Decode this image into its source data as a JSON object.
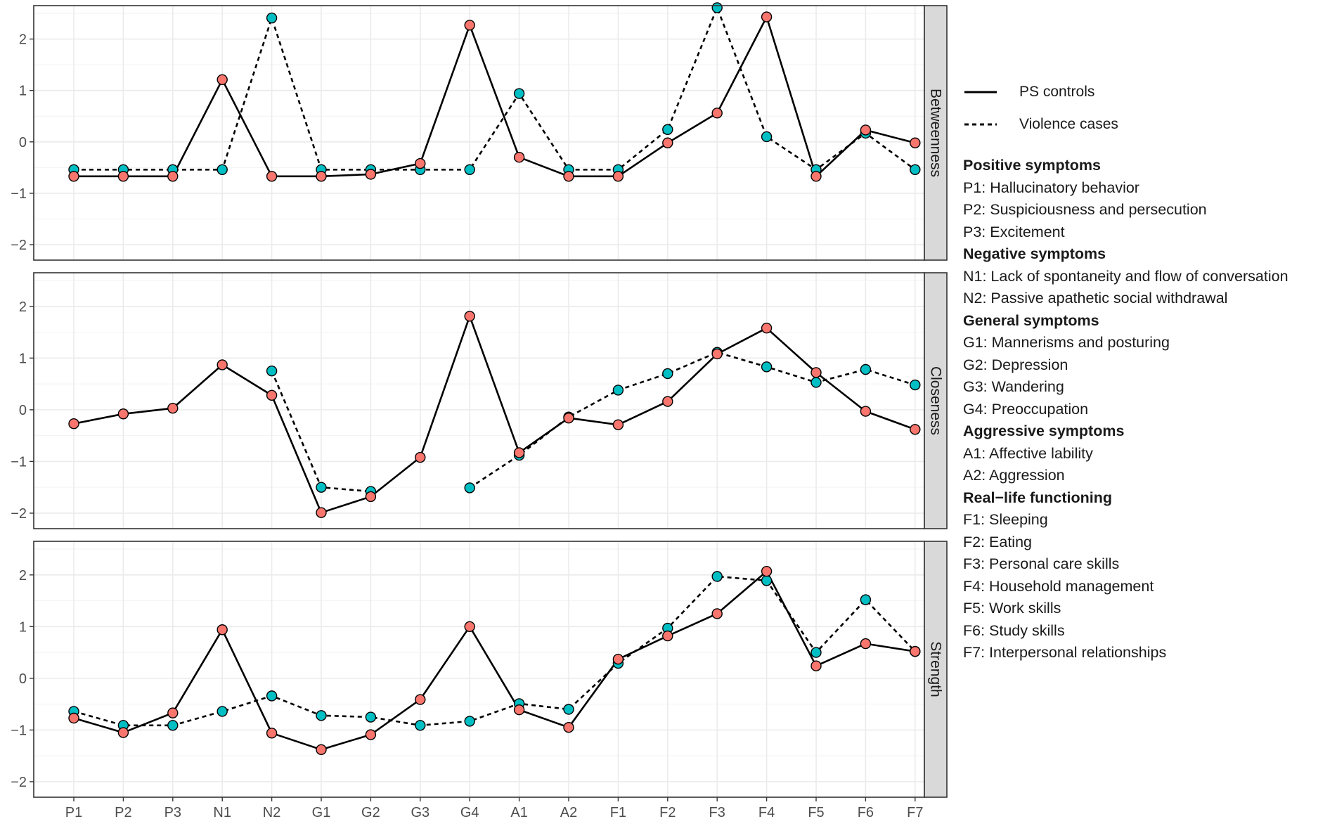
{
  "chart_data": {
    "type": "line",
    "categories": [
      "P1",
      "P2",
      "P3",
      "N1",
      "N2",
      "G1",
      "G2",
      "G3",
      "G4",
      "A1",
      "A2",
      "F1",
      "F2",
      "F3",
      "F4",
      "F5",
      "F6",
      "F7"
    ],
    "ylim": [
      -2.3,
      2.65
    ],
    "y_ticks": [
      -2,
      -1,
      0,
      1,
      2
    ],
    "y_tick_labels": [
      "−2",
      "−1",
      "0",
      "1",
      "2"
    ],
    "panels": [
      {
        "strip_label": "Betweenness",
        "series": [
          {
            "name": "PS controls",
            "line": "solid",
            "color": "#F8766D",
            "values": [
              -0.67,
              -0.67,
              -0.67,
              1.21,
              -0.67,
              -0.67,
              -0.63,
              -0.42,
              2.27,
              -0.3,
              -0.67,
              -0.67,
              -0.02,
              0.56,
              2.43,
              -0.67,
              0.23,
              -0.02
            ]
          },
          {
            "name": "Violence cases",
            "line": "dashed",
            "color": "#00BFC4",
            "values": [
              -0.54,
              -0.54,
              -0.54,
              -0.54,
              2.41,
              -0.54,
              -0.54,
              -0.54,
              -0.54,
              0.94,
              -0.54,
              -0.54,
              0.24,
              2.61,
              0.1,
              -0.54,
              0.17,
              -0.54
            ]
          }
        ]
      },
      {
        "strip_label": "Closeness",
        "series": [
          {
            "name": "PS controls",
            "line": "solid",
            "color": "#F8766D",
            "values": [
              -0.27,
              -0.08,
              0.03,
              0.87,
              0.28,
              -1.99,
              -1.68,
              -0.92,
              1.81,
              -0.83,
              -0.16,
              -0.29,
              0.16,
              1.08,
              1.58,
              0.72,
              -0.03,
              -0.38
            ]
          },
          {
            "name": "Violence cases",
            "line": "dashed",
            "color": "#00BFC4",
            "values": [
              null,
              null,
              null,
              null,
              0.75,
              -1.5,
              -1.58,
              null,
              -1.51,
              -0.88,
              -0.14,
              0.38,
              0.7,
              1.11,
              0.83,
              0.53,
              0.78,
              0.48
            ]
          }
        ]
      },
      {
        "strip_label": "Strength",
        "series": [
          {
            "name": "PS controls",
            "line": "solid",
            "color": "#F8766D",
            "values": [
              -0.77,
              -1.05,
              -0.67,
              0.94,
              -1.06,
              -1.38,
              -1.09,
              -0.41,
              1.0,
              -0.61,
              -0.95,
              0.37,
              0.82,
              1.25,
              2.07,
              0.24,
              0.67,
              0.52
            ]
          },
          {
            "name": "Violence cases",
            "line": "dashed",
            "color": "#00BFC4",
            "values": [
              -0.64,
              -0.91,
              -0.91,
              -0.64,
              -0.34,
              -0.72,
              -0.75,
              -0.91,
              -0.83,
              -0.49,
              -0.6,
              0.29,
              0.97,
              1.97,
              1.89,
              0.5,
              1.52,
              0.52
            ]
          }
        ]
      }
    ],
    "legend": [
      {
        "label": "PS controls",
        "line": "solid"
      },
      {
        "label": "Violence cases",
        "line": "dashed"
      }
    ],
    "legend_groups": [
      {
        "title": "Positive symptoms",
        "items": [
          "P1: Hallucinatory behavior",
          "P2: Suspiciousness and persecution",
          "P3: Excitement"
        ]
      },
      {
        "title": "Negative symptoms",
        "items": [
          "N1: Lack of spontaneity and flow of conversation",
          "N2: Passive apathetic social withdrawal"
        ]
      },
      {
        "title": "General symptoms",
        "items": [
          "G1: Mannerisms and posturing",
          "G2: Depression",
          "G3: Wandering",
          "G4: Preoccupation"
        ]
      },
      {
        "title": "Aggressive symptoms",
        "items": [
          "A1: Affective lability",
          "A2: Aggression"
        ]
      },
      {
        "title": "Real−life functioning",
        "items": [
          "F1: Sleeping",
          "F2: Eating",
          "F3: Personal care skills",
          "F4: Household management",
          "F5: Work skills",
          "F6: Study skills",
          "F7: Interpersonal relationships"
        ]
      }
    ]
  }
}
